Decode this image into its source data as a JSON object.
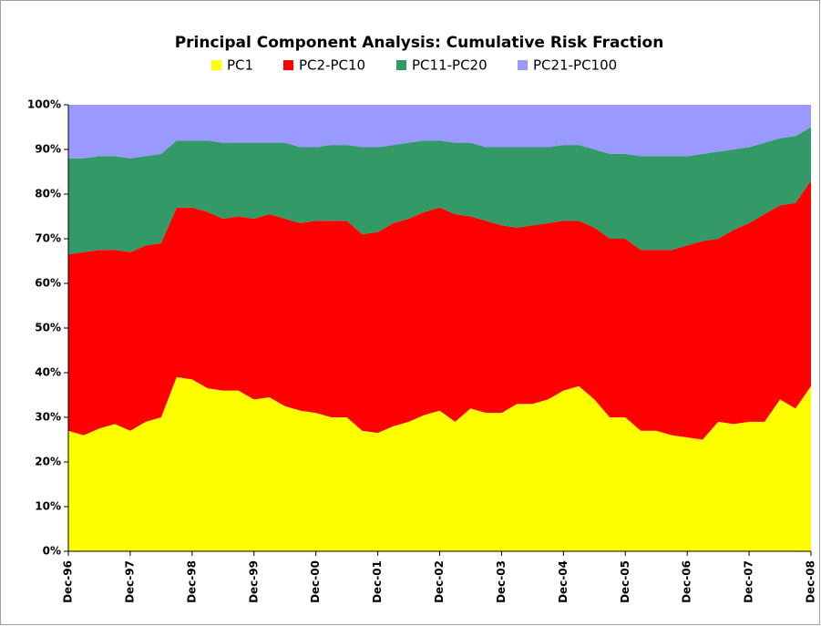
{
  "chart_data": {
    "type": "stacked_area",
    "title": "Principal Component Analysis: Cumulative Risk Fraction",
    "categories": [
      "Dec-96",
      null,
      null,
      null,
      "Dec-97",
      null,
      null,
      null,
      "Dec-98",
      null,
      null,
      null,
      "Dec-99",
      null,
      null,
      null,
      "Dec-00",
      null,
      null,
      null,
      "Dec-01",
      null,
      null,
      null,
      "Dec-02",
      null,
      null,
      null,
      "Dec-03",
      null,
      null,
      null,
      "Dec-04",
      null,
      null,
      null,
      "Dec-05",
      null,
      null,
      null,
      "Dec-06",
      null,
      null,
      null,
      "Dec-07",
      null,
      null,
      null,
      "Dec-08"
    ],
    "series": [
      {
        "name": "PC1",
        "color": "#ffff00",
        "values": [
          27,
          26,
          27.5,
          28.5,
          27,
          29,
          30,
          39,
          38.5,
          36.5,
          36,
          36,
          34,
          34.5,
          32.5,
          31.5,
          31,
          30,
          30,
          27,
          26.5,
          28,
          29,
          30.5,
          31.5,
          29,
          32,
          31,
          31,
          33,
          33,
          34,
          36,
          37,
          34,
          30,
          30,
          27,
          27,
          26,
          25.5,
          25,
          29,
          28.5,
          29,
          29,
          34,
          32,
          37
        ]
      },
      {
        "name": "PC2-PC10",
        "color": "#ff0000",
        "values": [
          39.5,
          41,
          40,
          39,
          40,
          39.5,
          39,
          38,
          38.5,
          39.5,
          38.5,
          39,
          40.5,
          41,
          42,
          42,
          43,
          44,
          44,
          44,
          45,
          45.5,
          45.5,
          45.5,
          45.5,
          46.5,
          43,
          43,
          42,
          39.5,
          40,
          39.5,
          38,
          37,
          38.5,
          40,
          40,
          40.5,
          40.5,
          41.5,
          43,
          44.5,
          41,
          43.5,
          44.5,
          46.5,
          43.5,
          46,
          46
        ]
      },
      {
        "name": "PC11-PC20",
        "color": "#339966",
        "values": [
          21.5,
          21,
          21,
          21,
          21,
          20,
          20,
          15,
          15,
          16,
          17,
          16.5,
          17,
          16,
          17,
          17,
          16.5,
          17,
          17,
          19.5,
          19,
          17.5,
          17,
          16,
          15,
          16,
          16.5,
          16.5,
          17.5,
          18,
          17.5,
          17,
          17,
          17,
          17.5,
          19,
          19,
          21,
          21,
          21,
          20,
          19.5,
          19.5,
          18,
          17,
          16,
          15,
          15,
          12
        ]
      },
      {
        "name": "PC21-PC100",
        "color": "#9999ff",
        "values": [
          12,
          12,
          11.5,
          11.5,
          12,
          11.5,
          11,
          8,
          8,
          8,
          8.5,
          8.5,
          8.5,
          8.5,
          8.5,
          9.5,
          9.5,
          9,
          9,
          9.5,
          9.5,
          9,
          8.5,
          8,
          8,
          8.5,
          8.5,
          9.5,
          9.5,
          9.5,
          9.5,
          9.5,
          9,
          9,
          10,
          11,
          11,
          11.5,
          11.5,
          11.5,
          11.5,
          11,
          10.5,
          10,
          9.5,
          8.5,
          7.5,
          7,
          5
        ]
      }
    ],
    "ylim": [
      0,
      100
    ],
    "yticks": [
      {
        "value": 0,
        "label": "0%"
      },
      {
        "value": 10,
        "label": "10%"
      },
      {
        "value": 20,
        "label": "20%"
      },
      {
        "value": 30,
        "label": "30%"
      },
      {
        "value": 40,
        "label": "40%"
      },
      {
        "value": 50,
        "label": "50%"
      },
      {
        "value": 60,
        "label": "60%"
      },
      {
        "value": 70,
        "label": "70%"
      },
      {
        "value": 80,
        "label": "80%"
      },
      {
        "value": 90,
        "label": "90%"
      },
      {
        "value": 100,
        "label": "100%"
      }
    ],
    "grid": false
  }
}
